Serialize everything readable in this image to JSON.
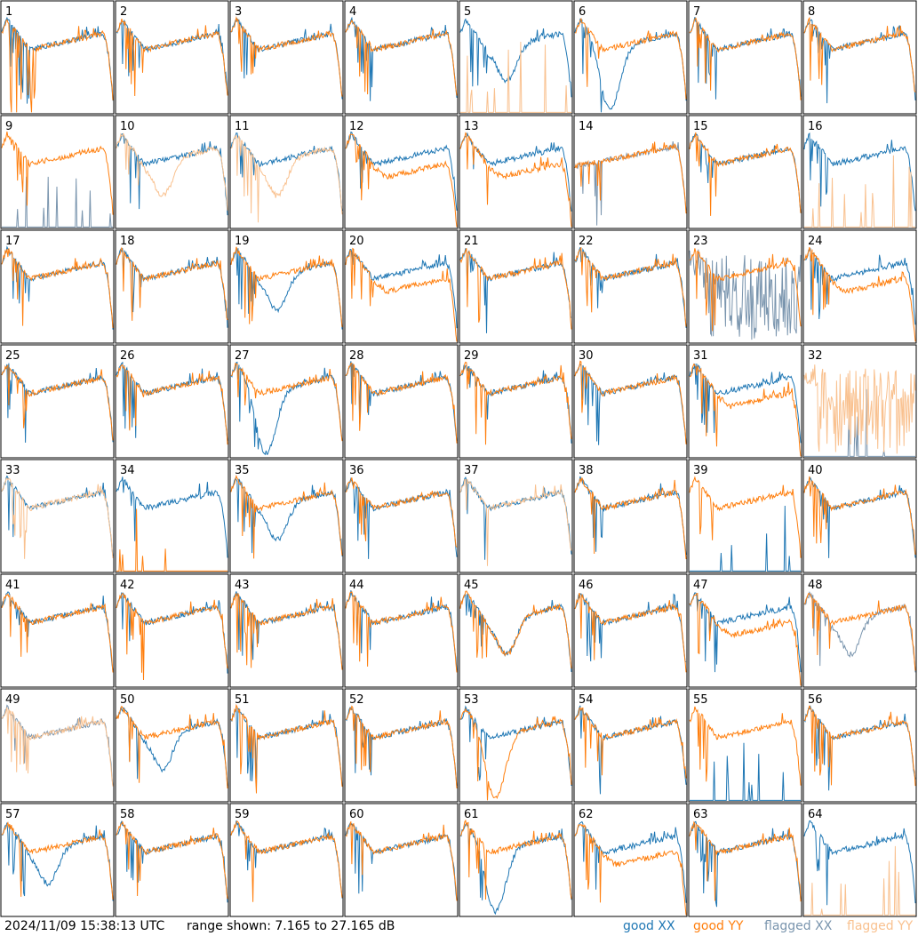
{
  "footer": {
    "timestamp": "2024/11/09 15:38:13 UTC",
    "range": "range shown: 7.165 to 27.165 dB",
    "legend": [
      "good XX",
      "good YY",
      "flagged XX",
      "flagged YY"
    ]
  },
  "colors": {
    "good_xx": "#1f77b4",
    "good_yy": "#ff7f0e",
    "flagged_xx": "#7a95ae",
    "flagged_yy": "#f9c18f"
  },
  "chart_data": {
    "type": "line",
    "grid": "8x8 small multiples",
    "y_range_db": [
      7.165,
      27.165
    ],
    "series_names": [
      "good XX",
      "good YY",
      "flagged XX",
      "flagged YY"
    ],
    "panels": [
      {
        "label": "1",
        "xx": "good",
        "yy": "good",
        "xx_shape": "standard",
        "yy_shape": "spiky_drop"
      },
      {
        "label": "2",
        "xx": "good",
        "yy": "good",
        "xx_shape": "standard",
        "yy_shape": "standard"
      },
      {
        "label": "3",
        "xx": "good",
        "yy": "good",
        "xx_shape": "standard",
        "yy_shape": "standard"
      },
      {
        "label": "4",
        "xx": "good",
        "yy": "good",
        "xx_shape": "standard",
        "yy_shape": "standard"
      },
      {
        "label": "5",
        "xx": "good",
        "yy": "flagged",
        "xx_shape": "dip",
        "yy_shape": "dead"
      },
      {
        "label": "6",
        "xx": "good",
        "yy": "good",
        "xx_shape": "deep_dip",
        "yy_shape": "standard"
      },
      {
        "label": "7",
        "xx": "good",
        "yy": "good",
        "xx_shape": "standard",
        "yy_shape": "standard"
      },
      {
        "label": "8",
        "xx": "good",
        "yy": "good",
        "xx_shape": "standard",
        "yy_shape": "standard"
      },
      {
        "label": "9",
        "xx": "flagged",
        "yy": "good",
        "xx_shape": "dead",
        "yy_shape": "standard"
      },
      {
        "label": "10",
        "xx": "good",
        "yy": "flagged",
        "xx_shape": "standard",
        "yy_shape": "dip"
      },
      {
        "label": "11",
        "xx": "good",
        "yy": "flagged",
        "xx_shape": "standard",
        "yy_shape": "dip"
      },
      {
        "label": "12",
        "xx": "good",
        "yy": "good",
        "xx_shape": "standard",
        "yy_shape": "low"
      },
      {
        "label": "13",
        "xx": "good",
        "yy": "good",
        "xx_shape": "standard",
        "yy_shape": "low"
      },
      {
        "label": "14",
        "xx": "flagged",
        "yy": "good",
        "xx_shape": "rising",
        "yy_shape": "rising"
      },
      {
        "label": "15",
        "xx": "good",
        "yy": "good",
        "xx_shape": "standard",
        "yy_shape": "standard"
      },
      {
        "label": "16",
        "xx": "good",
        "yy": "flagged",
        "xx_shape": "standard",
        "yy_shape": "dead"
      },
      {
        "label": "17",
        "xx": "good",
        "yy": "good",
        "xx_shape": "standard",
        "yy_shape": "standard"
      },
      {
        "label": "18",
        "xx": "good",
        "yy": "good",
        "xx_shape": "standard",
        "yy_shape": "standard"
      },
      {
        "label": "19",
        "xx": "good",
        "yy": "good",
        "xx_shape": "dip",
        "yy_shape": "standard"
      },
      {
        "label": "20",
        "xx": "good",
        "yy": "good",
        "xx_shape": "standard",
        "yy_shape": "low"
      },
      {
        "label": "21",
        "xx": "good",
        "yy": "good",
        "xx_shape": "standard",
        "yy_shape": "standard"
      },
      {
        "label": "22",
        "xx": "good",
        "yy": "good",
        "xx_shape": "standard",
        "yy_shape": "standard"
      },
      {
        "label": "23",
        "xx": "flagged",
        "yy": "good",
        "xx_shape": "noisy",
        "yy_shape": "standard"
      },
      {
        "label": "24",
        "xx": "good",
        "yy": "good",
        "xx_shape": "standard",
        "yy_shape": "low"
      },
      {
        "label": "25",
        "xx": "good",
        "yy": "good",
        "xx_shape": "standard",
        "yy_shape": "standard"
      },
      {
        "label": "26",
        "xx": "good",
        "yy": "good",
        "xx_shape": "standard",
        "yy_shape": "standard"
      },
      {
        "label": "27",
        "xx": "good",
        "yy": "good",
        "xx_shape": "deep_dip",
        "yy_shape": "standard"
      },
      {
        "label": "28",
        "xx": "good",
        "yy": "good",
        "xx_shape": "standard",
        "yy_shape": "standard"
      },
      {
        "label": "29",
        "xx": "good",
        "yy": "good",
        "xx_shape": "standard",
        "yy_shape": "standard"
      },
      {
        "label": "30",
        "xx": "good",
        "yy": "good",
        "xx_shape": "standard",
        "yy_shape": "standard"
      },
      {
        "label": "31",
        "xx": "good",
        "yy": "good",
        "xx_shape": "standard",
        "yy_shape": "low"
      },
      {
        "label": "32",
        "xx": "flagged",
        "yy": "flagged",
        "xx_shape": "dead",
        "yy_shape": "noisy"
      },
      {
        "label": "33",
        "xx": "good",
        "yy": "flagged",
        "xx_shape": "standard",
        "yy_shape": "standard"
      },
      {
        "label": "34",
        "xx": "good",
        "yy": "good",
        "xx_shape": "standard",
        "yy_shape": "dead"
      },
      {
        "label": "35",
        "xx": "good",
        "yy": "good",
        "xx_shape": "dip",
        "yy_shape": "standard"
      },
      {
        "label": "36",
        "xx": "good",
        "yy": "good",
        "xx_shape": "standard",
        "yy_shape": "standard"
      },
      {
        "label": "37",
        "xx": "good",
        "yy": "flagged",
        "xx_shape": "standard",
        "yy_shape": "standard"
      },
      {
        "label": "38",
        "xx": "good",
        "yy": "good",
        "xx_shape": "standard",
        "yy_shape": "standard"
      },
      {
        "label": "39",
        "xx": "good",
        "yy": "good",
        "xx_shape": "dead",
        "yy_shape": "standard"
      },
      {
        "label": "40",
        "xx": "good",
        "yy": "good",
        "xx_shape": "standard",
        "yy_shape": "standard"
      },
      {
        "label": "41",
        "xx": "good",
        "yy": "good",
        "xx_shape": "standard",
        "yy_shape": "standard"
      },
      {
        "label": "42",
        "xx": "good",
        "yy": "good",
        "xx_shape": "standard",
        "yy_shape": "standard"
      },
      {
        "label": "43",
        "xx": "good",
        "yy": "good",
        "xx_shape": "standard",
        "yy_shape": "standard"
      },
      {
        "label": "44",
        "xx": "good",
        "yy": "good",
        "xx_shape": "standard",
        "yy_shape": "standard"
      },
      {
        "label": "45",
        "xx": "good",
        "yy": "good",
        "xx_shape": "dip",
        "yy_shape": "dip"
      },
      {
        "label": "46",
        "xx": "good",
        "yy": "good",
        "xx_shape": "standard",
        "yy_shape": "standard"
      },
      {
        "label": "47",
        "xx": "good",
        "yy": "good",
        "xx_shape": "standard",
        "yy_shape": "low"
      },
      {
        "label": "48",
        "xx": "flagged",
        "yy": "good",
        "xx_shape": "dip",
        "yy_shape": "standard"
      },
      {
        "label": "49",
        "xx": "flagged",
        "yy": "flagged",
        "xx_shape": "standard",
        "yy_shape": "standard"
      },
      {
        "label": "50",
        "xx": "good",
        "yy": "good",
        "xx_shape": "dip",
        "yy_shape": "standard"
      },
      {
        "label": "51",
        "xx": "good",
        "yy": "good",
        "xx_shape": "standard",
        "yy_shape": "standard"
      },
      {
        "label": "52",
        "xx": "good",
        "yy": "good",
        "xx_shape": "standard",
        "yy_shape": "standard"
      },
      {
        "label": "53",
        "xx": "good",
        "yy": "good",
        "xx_shape": "standard",
        "yy_shape": "deep_dip"
      },
      {
        "label": "54",
        "xx": "good",
        "yy": "good",
        "xx_shape": "standard",
        "yy_shape": "standard"
      },
      {
        "label": "55",
        "xx": "good",
        "yy": "good",
        "xx_shape": "dead",
        "yy_shape": "standard"
      },
      {
        "label": "56",
        "xx": "good",
        "yy": "good",
        "xx_shape": "standard",
        "yy_shape": "standard"
      },
      {
        "label": "57",
        "xx": "good",
        "yy": "good",
        "xx_shape": "dip",
        "yy_shape": "standard"
      },
      {
        "label": "58",
        "xx": "good",
        "yy": "good",
        "xx_shape": "standard",
        "yy_shape": "standard"
      },
      {
        "label": "59",
        "xx": "good",
        "yy": "good",
        "xx_shape": "standard",
        "yy_shape": "standard"
      },
      {
        "label": "60",
        "xx": "good",
        "yy": "good",
        "xx_shape": "standard",
        "yy_shape": "standard"
      },
      {
        "label": "61",
        "xx": "good",
        "yy": "good",
        "xx_shape": "deep_dip",
        "yy_shape": "standard"
      },
      {
        "label": "62",
        "xx": "good",
        "yy": "good",
        "xx_shape": "standard",
        "yy_shape": "low"
      },
      {
        "label": "63",
        "xx": "good",
        "yy": "good",
        "xx_shape": "standard",
        "yy_shape": "standard"
      },
      {
        "label": "64",
        "xx": "good",
        "yy": "flagged",
        "xx_shape": "standard",
        "yy_shape": "dead"
      }
    ]
  }
}
